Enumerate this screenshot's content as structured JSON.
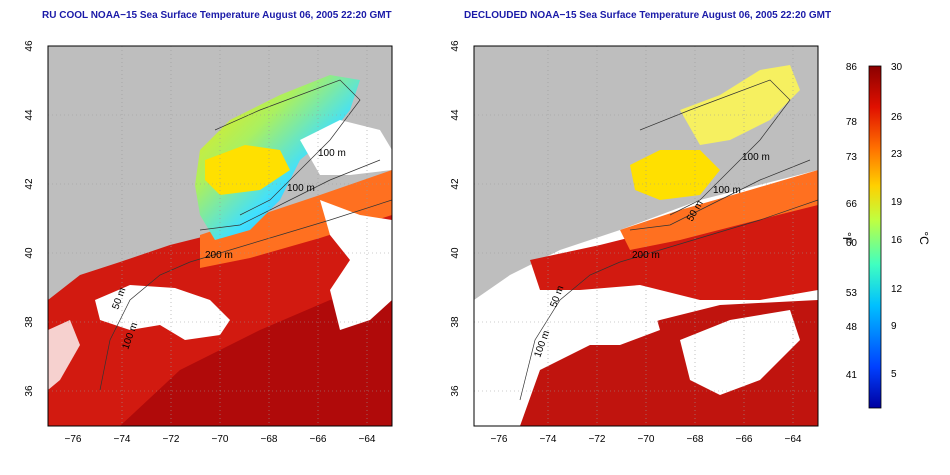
{
  "panels": [
    {
      "title": "RU COOL NOAA−15 Sea Surface Temperature August 06, 2005 22:20 GMT",
      "contour_labels": [
        "100 m",
        "100 m",
        "200 m",
        "50 m",
        "100 m"
      ]
    },
    {
      "title": "DECLOUDED NOAA−15 Sea Surface Temperature August 06, 2005 22:20 GMT",
      "contour_labels": [
        "100 m",
        "100 m",
        "50 m",
        "200 m",
        "50 m",
        "100 m"
      ]
    }
  ],
  "axes": {
    "x_ticks": [
      "−76",
      "−74",
      "−72",
      "−70",
      "−68",
      "−66",
      "−64"
    ],
    "y_ticks": [
      "46",
      "44",
      "42",
      "40",
      "38",
      "36"
    ],
    "x_range": [
      -77,
      -63
    ],
    "y_range": [
      35,
      46
    ]
  },
  "colorbar": {
    "fahrenheit_label": "°F",
    "celsius_label": "°C",
    "fahrenheit_ticks": [
      "86",
      "78",
      "73",
      "66",
      "60",
      "53",
      "48",
      "41"
    ],
    "celsius_ticks": [
      "30",
      "26",
      "23",
      "19",
      "16",
      "12",
      "9",
      "5"
    ],
    "range_celsius": [
      2,
      30
    ],
    "colors": [
      "#0000a0",
      "#0040ff",
      "#00c0ff",
      "#40ffc0",
      "#c0ff40",
      "#ffd000",
      "#ff7000",
      "#e01000",
      "#8a0000"
    ]
  },
  "colors": {
    "land": "#bebebe",
    "cloud": "#ffffff",
    "warm": "#d21a10",
    "title": "#1a1aa8"
  }
}
